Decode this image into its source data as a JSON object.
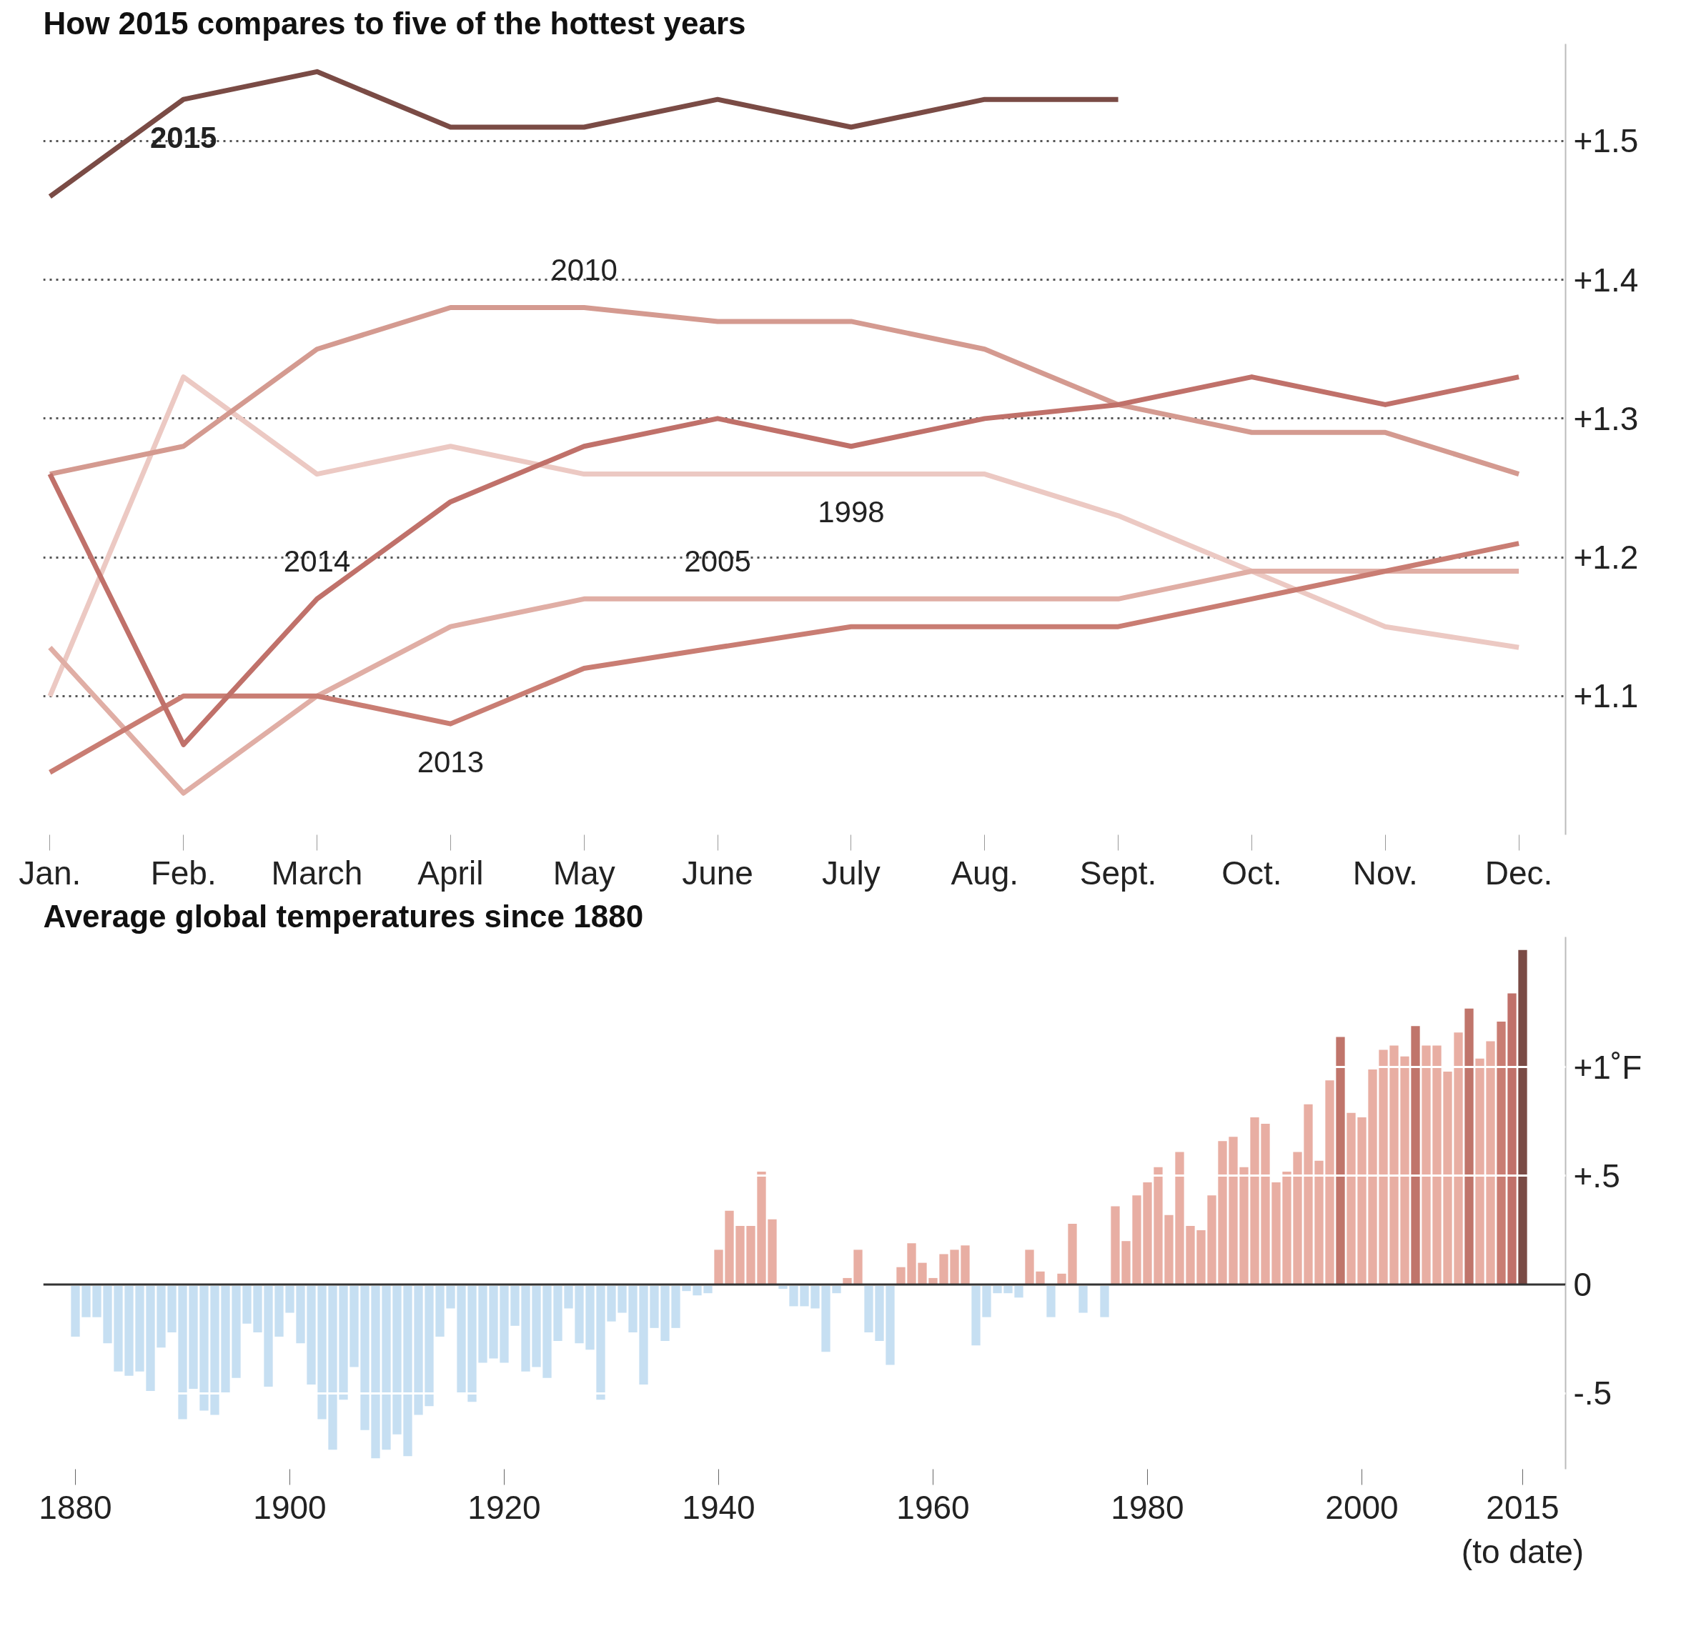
{
  "chart_data": [
    {
      "type": "line",
      "title": "How 2015 compares to five of the hottest years",
      "categories": [
        "Jan.",
        "Feb.",
        "March",
        "April",
        "May",
        "June",
        "July",
        "Aug.",
        "Sept.",
        "Oct.",
        "Nov.",
        "Dec."
      ],
      "series": [
        {
          "name": "2015",
          "color": "#7a4b45",
          "values": [
            1.46,
            1.53,
            1.55,
            1.51,
            1.51,
            1.53,
            1.51,
            1.53,
            1.53,
            null,
            null,
            null
          ]
        },
        {
          "name": "2014",
          "color": "#c0716a",
          "values": [
            1.26,
            1.065,
            1.17,
            1.24,
            1.28,
            1.3,
            1.28,
            1.3,
            1.31,
            1.33,
            1.31,
            1.33
          ]
        },
        {
          "name": "2013",
          "color": "#c97d73",
          "values": [
            1.045,
            1.1,
            1.1,
            1.08,
            1.12,
            1.135,
            1.15,
            1.15,
            1.15,
            1.17,
            1.19,
            1.21
          ]
        },
        {
          "name": "2010",
          "color": "#d49a90",
          "values": [
            1.26,
            1.28,
            1.35,
            1.38,
            1.38,
            1.37,
            1.37,
            1.35,
            1.31,
            1.29,
            1.29,
            1.26
          ]
        },
        {
          "name": "2005",
          "color": "#e0aea5",
          "values": [
            1.135,
            1.03,
            1.1,
            1.15,
            1.17,
            1.17,
            1.17,
            1.17,
            1.17,
            1.19,
            1.19,
            1.19
          ]
        },
        {
          "name": "1998",
          "color": "#ecc9c3",
          "values": [
            1.1,
            1.33,
            1.26,
            1.28,
            1.26,
            1.26,
            1.26,
            1.26,
            1.23,
            1.19,
            1.15,
            1.135
          ]
        }
      ],
      "ylim": [
        1.0,
        1.57
      ],
      "yticks": [
        {
          "value": 1.1,
          "label": "+1.1"
        },
        {
          "value": 1.2,
          "label": "+1.2"
        },
        {
          "value": 1.3,
          "label": "+1.3"
        },
        {
          "value": 1.4,
          "label": "+1.4"
        },
        {
          "value": 1.5,
          "label": "+1.5"
        }
      ],
      "grid": "y"
    },
    {
      "type": "bar",
      "title": "Average global temperatures since 1880",
      "x": [
        1880,
        1881,
        1882,
        1883,
        1884,
        1885,
        1886,
        1887,
        1888,
        1889,
        1890,
        1891,
        1892,
        1893,
        1894,
        1895,
        1896,
        1897,
        1898,
        1899,
        1900,
        1901,
        1902,
        1903,
        1904,
        1905,
        1906,
        1907,
        1908,
        1909,
        1910,
        1911,
        1912,
        1913,
        1914,
        1915,
        1916,
        1917,
        1918,
        1919,
        1920,
        1921,
        1922,
        1923,
        1924,
        1925,
        1926,
        1927,
        1928,
        1929,
        1930,
        1931,
        1932,
        1933,
        1934,
        1935,
        1936,
        1937,
        1938,
        1939,
        1940,
        1941,
        1942,
        1943,
        1944,
        1945,
        1946,
        1947,
        1948,
        1949,
        1950,
        1951,
        1952,
        1953,
        1954,
        1955,
        1956,
        1957,
        1958,
        1959,
        1960,
        1961,
        1962,
        1963,
        1964,
        1965,
        1966,
        1967,
        1968,
        1969,
        1970,
        1971,
        1972,
        1973,
        1974,
        1975,
        1976,
        1977,
        1978,
        1979,
        1980,
        1981,
        1982,
        1983,
        1984,
        1985,
        1986,
        1987,
        1988,
        1989,
        1990,
        1991,
        1992,
        1993,
        1994,
        1995,
        1996,
        1997,
        1998,
        1999,
        2000,
        2001,
        2002,
        2003,
        2004,
        2005,
        2006,
        2007,
        2008,
        2009,
        2010,
        2011,
        2012,
        2013,
        2014,
        2015
      ],
      "values": [
        -0.24,
        -0.15,
        -0.15,
        -0.27,
        -0.4,
        -0.42,
        -0.4,
        -0.49,
        -0.29,
        -0.22,
        -0.62,
        -0.48,
        -0.58,
        -0.6,
        -0.5,
        -0.43,
        -0.18,
        -0.22,
        -0.47,
        -0.24,
        -0.13,
        -0.27,
        -0.46,
        -0.62,
        -0.76,
        -0.53,
        -0.38,
        -0.67,
        -0.8,
        -0.76,
        -0.69,
        -0.79,
        -0.6,
        -0.56,
        -0.24,
        -0.11,
        -0.5,
        -0.54,
        -0.36,
        -0.34,
        -0.36,
        -0.19,
        -0.4,
        -0.38,
        -0.43,
        -0.26,
        -0.11,
        -0.27,
        -0.3,
        -0.53,
        -0.17,
        -0.13,
        -0.22,
        -0.46,
        -0.2,
        -0.26,
        -0.2,
        -0.03,
        -0.05,
        -0.04,
        0.16,
        0.34,
        0.27,
        0.27,
        0.52,
        0.3,
        -0.02,
        -0.1,
        -0.1,
        -0.11,
        -0.31,
        -0.04,
        0.03,
        0.16,
        -0.22,
        -0.26,
        -0.37,
        0.08,
        0.19,
        0.1,
        0.03,
        0.14,
        0.16,
        0.18,
        -0.28,
        -0.15,
        -0.04,
        -0.04,
        -0.06,
        0.16,
        0.06,
        -0.15,
        0.05,
        0.28,
        -0.13,
        0.0,
        -0.15,
        0.36,
        0.2,
        0.41,
        0.47,
        0.54,
        0.32,
        0.61,
        0.27,
        0.25,
        0.41,
        0.66,
        0.68,
        0.54,
        0.77,
        0.74,
        0.47,
        0.52,
        0.61,
        0.83,
        0.57,
        0.94,
        1.14,
        0.79,
        0.77,
        0.99,
        1.08,
        1.1,
        1.05,
        1.19,
        1.1,
        1.1,
        0.98,
        1.16,
        1.27,
        1.04,
        1.12,
        1.21,
        1.34,
        1.54
      ],
      "colors": [
        "#c6dff2",
        "#c6dff2",
        "#c6dff2",
        "#c6dff2",
        "#c6dff2",
        "#c6dff2",
        "#c6dff2",
        "#c6dff2",
        "#c6dff2",
        "#c6dff2",
        "#c6dff2",
        "#c6dff2",
        "#c6dff2",
        "#c6dff2",
        "#c6dff2",
        "#c6dff2",
        "#c6dff2",
        "#c6dff2",
        "#c6dff2",
        "#c6dff2",
        "#c6dff2",
        "#c6dff2",
        "#c6dff2",
        "#c6dff2",
        "#c6dff2",
        "#c6dff2",
        "#c6dff2",
        "#c6dff2",
        "#c6dff2",
        "#c6dff2",
        "#c6dff2",
        "#c6dff2",
        "#c6dff2",
        "#c6dff2",
        "#c6dff2",
        "#c6dff2",
        "#c6dff2",
        "#c6dff2",
        "#c6dff2",
        "#c6dff2",
        "#c6dff2",
        "#c6dff2",
        "#c6dff2",
        "#c6dff2",
        "#c6dff2",
        "#c6dff2",
        "#c6dff2",
        "#c6dff2",
        "#c6dff2",
        "#c6dff2",
        "#c6dff2",
        "#c6dff2",
        "#c6dff2",
        "#c6dff2",
        "#c6dff2",
        "#c6dff2",
        "#c6dff2",
        "#c6dff2",
        "#c6dff2",
        "#c6dff2",
        "#e8aea3",
        "#e8aea3",
        "#e8aea3",
        "#e8aea3",
        "#e8aea3",
        "#e8aea3",
        "#c6dff2",
        "#c6dff2",
        "#c6dff2",
        "#c6dff2",
        "#c6dff2",
        "#c6dff2",
        "#e8aea3",
        "#e8aea3",
        "#c6dff2",
        "#c6dff2",
        "#c6dff2",
        "#e8aea3",
        "#e8aea3",
        "#e8aea3",
        "#e8aea3",
        "#e8aea3",
        "#e8aea3",
        "#e8aea3",
        "#c6dff2",
        "#c6dff2",
        "#c6dff2",
        "#c6dff2",
        "#c6dff2",
        "#e8aea3",
        "#e8aea3",
        "#c6dff2",
        "#e8aea3",
        "#e8aea3",
        "#c6dff2",
        "#e8aea3",
        "#c6dff2",
        "#e8aea3",
        "#e8aea3",
        "#e8aea3",
        "#e8aea3",
        "#e8aea3",
        "#e8aea3",
        "#e8aea3",
        "#e8aea3",
        "#e8aea3",
        "#e8aea3",
        "#e8aea3",
        "#e8aea3",
        "#e8aea3",
        "#e8aea3",
        "#e8aea3",
        "#e8aea3",
        "#e8aea3",
        "#e8aea3",
        "#e8aea3",
        "#e8aea3",
        "#e8aea3",
        "#c0756b",
        "#e8aea3",
        "#e8aea3",
        "#e8aea3",
        "#e8aea3",
        "#e8aea3",
        "#e8aea3",
        "#c0756b",
        "#e8aea3",
        "#e8aea3",
        "#e8aea3",
        "#e8aea3",
        "#c0756b",
        "#e8aea3",
        "#e8aea3",
        "#c97d73",
        "#c0716a",
        "#7a4b45"
      ],
      "xlim": [
        1877,
        2019
      ],
      "xticks": [
        1880,
        1900,
        1920,
        1940,
        1960,
        1980,
        2000,
        {
          "value": 2015,
          "label": "2015\n(to date)"
        }
      ],
      "ylim": [
        -0.85,
        1.6
      ],
      "yticks": [
        {
          "value": -0.5,
          "label": "-.5"
        },
        {
          "value": 0,
          "label": "0"
        },
        {
          "value": 0.5,
          "label": "+.5"
        },
        {
          "value": 1,
          "label": "+1˚F"
        }
      ],
      "grid": "y"
    }
  ]
}
